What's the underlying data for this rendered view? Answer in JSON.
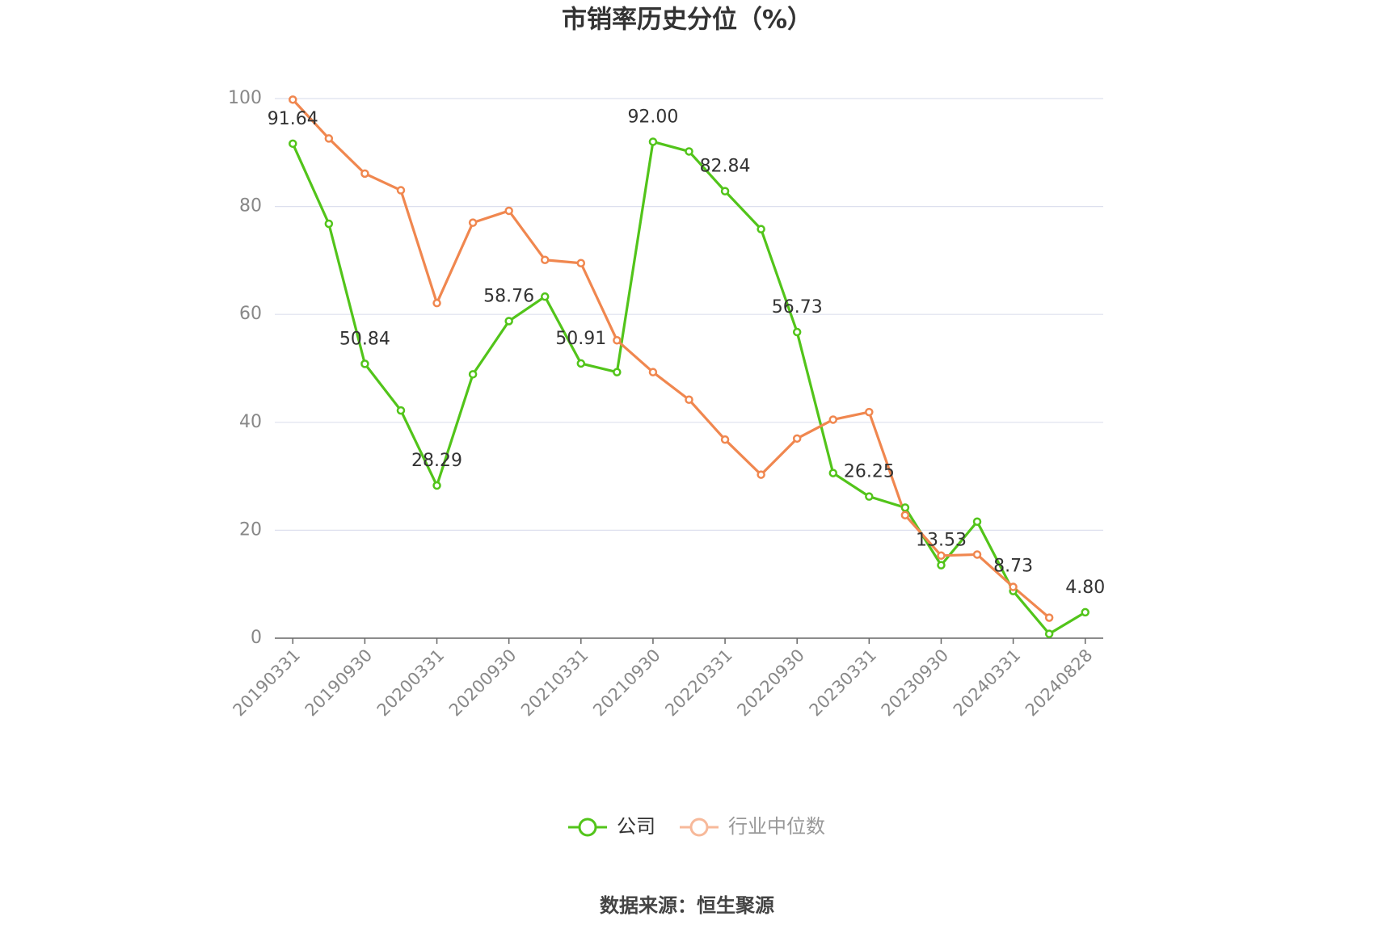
{
  "chart_data": {
    "type": "line",
    "title": "市销率历史分位（%）",
    "categories": [
      "20190331",
      null,
      "20190930",
      null,
      "20200331",
      null,
      "20200930",
      null,
      "20210331",
      null,
      "20210930",
      null,
      "20220331",
      null,
      "20220930",
      null,
      "20230331",
      null,
      "20230930",
      null,
      "20240331",
      null,
      "20240828"
    ],
    "series": [
      {
        "name": "公司",
        "color": "#52c41a",
        "values": [
          91.64,
          76.8,
          50.84,
          42.2,
          28.29,
          48.9,
          58.76,
          63.3,
          50.91,
          49.3,
          92.0,
          90.2,
          82.84,
          75.8,
          56.73,
          30.6,
          26.25,
          24.2,
          13.53,
          21.6,
          8.73,
          0.8,
          4.8
        ],
        "value_labels": [
          "91.64",
          null,
          "50.84",
          null,
          "28.29",
          null,
          "58.76",
          null,
          "50.91",
          null,
          "92.00",
          null,
          "82.84",
          null,
          "56.73",
          null,
          "26.25",
          null,
          "13.53",
          null,
          "8.73",
          null,
          "4.80"
        ]
      },
      {
        "name": "行业中位数",
        "color": "#f0874f",
        "values": [
          99.8,
          92.6,
          86.1,
          83.0,
          62.1,
          77.0,
          79.2,
          70.1,
          69.5,
          55.2,
          49.3,
          44.2,
          36.8,
          30.3,
          37.0,
          40.5,
          41.9,
          22.8,
          15.3,
          15.5,
          9.5,
          3.8,
          null
        ]
      }
    ],
    "ylim": [
      0,
      100
    ],
    "yticks": [
      0,
      20,
      40,
      60,
      80,
      100
    ],
    "grid": true,
    "legend": "bottom",
    "source": "数据来源：恒生聚源"
  }
}
